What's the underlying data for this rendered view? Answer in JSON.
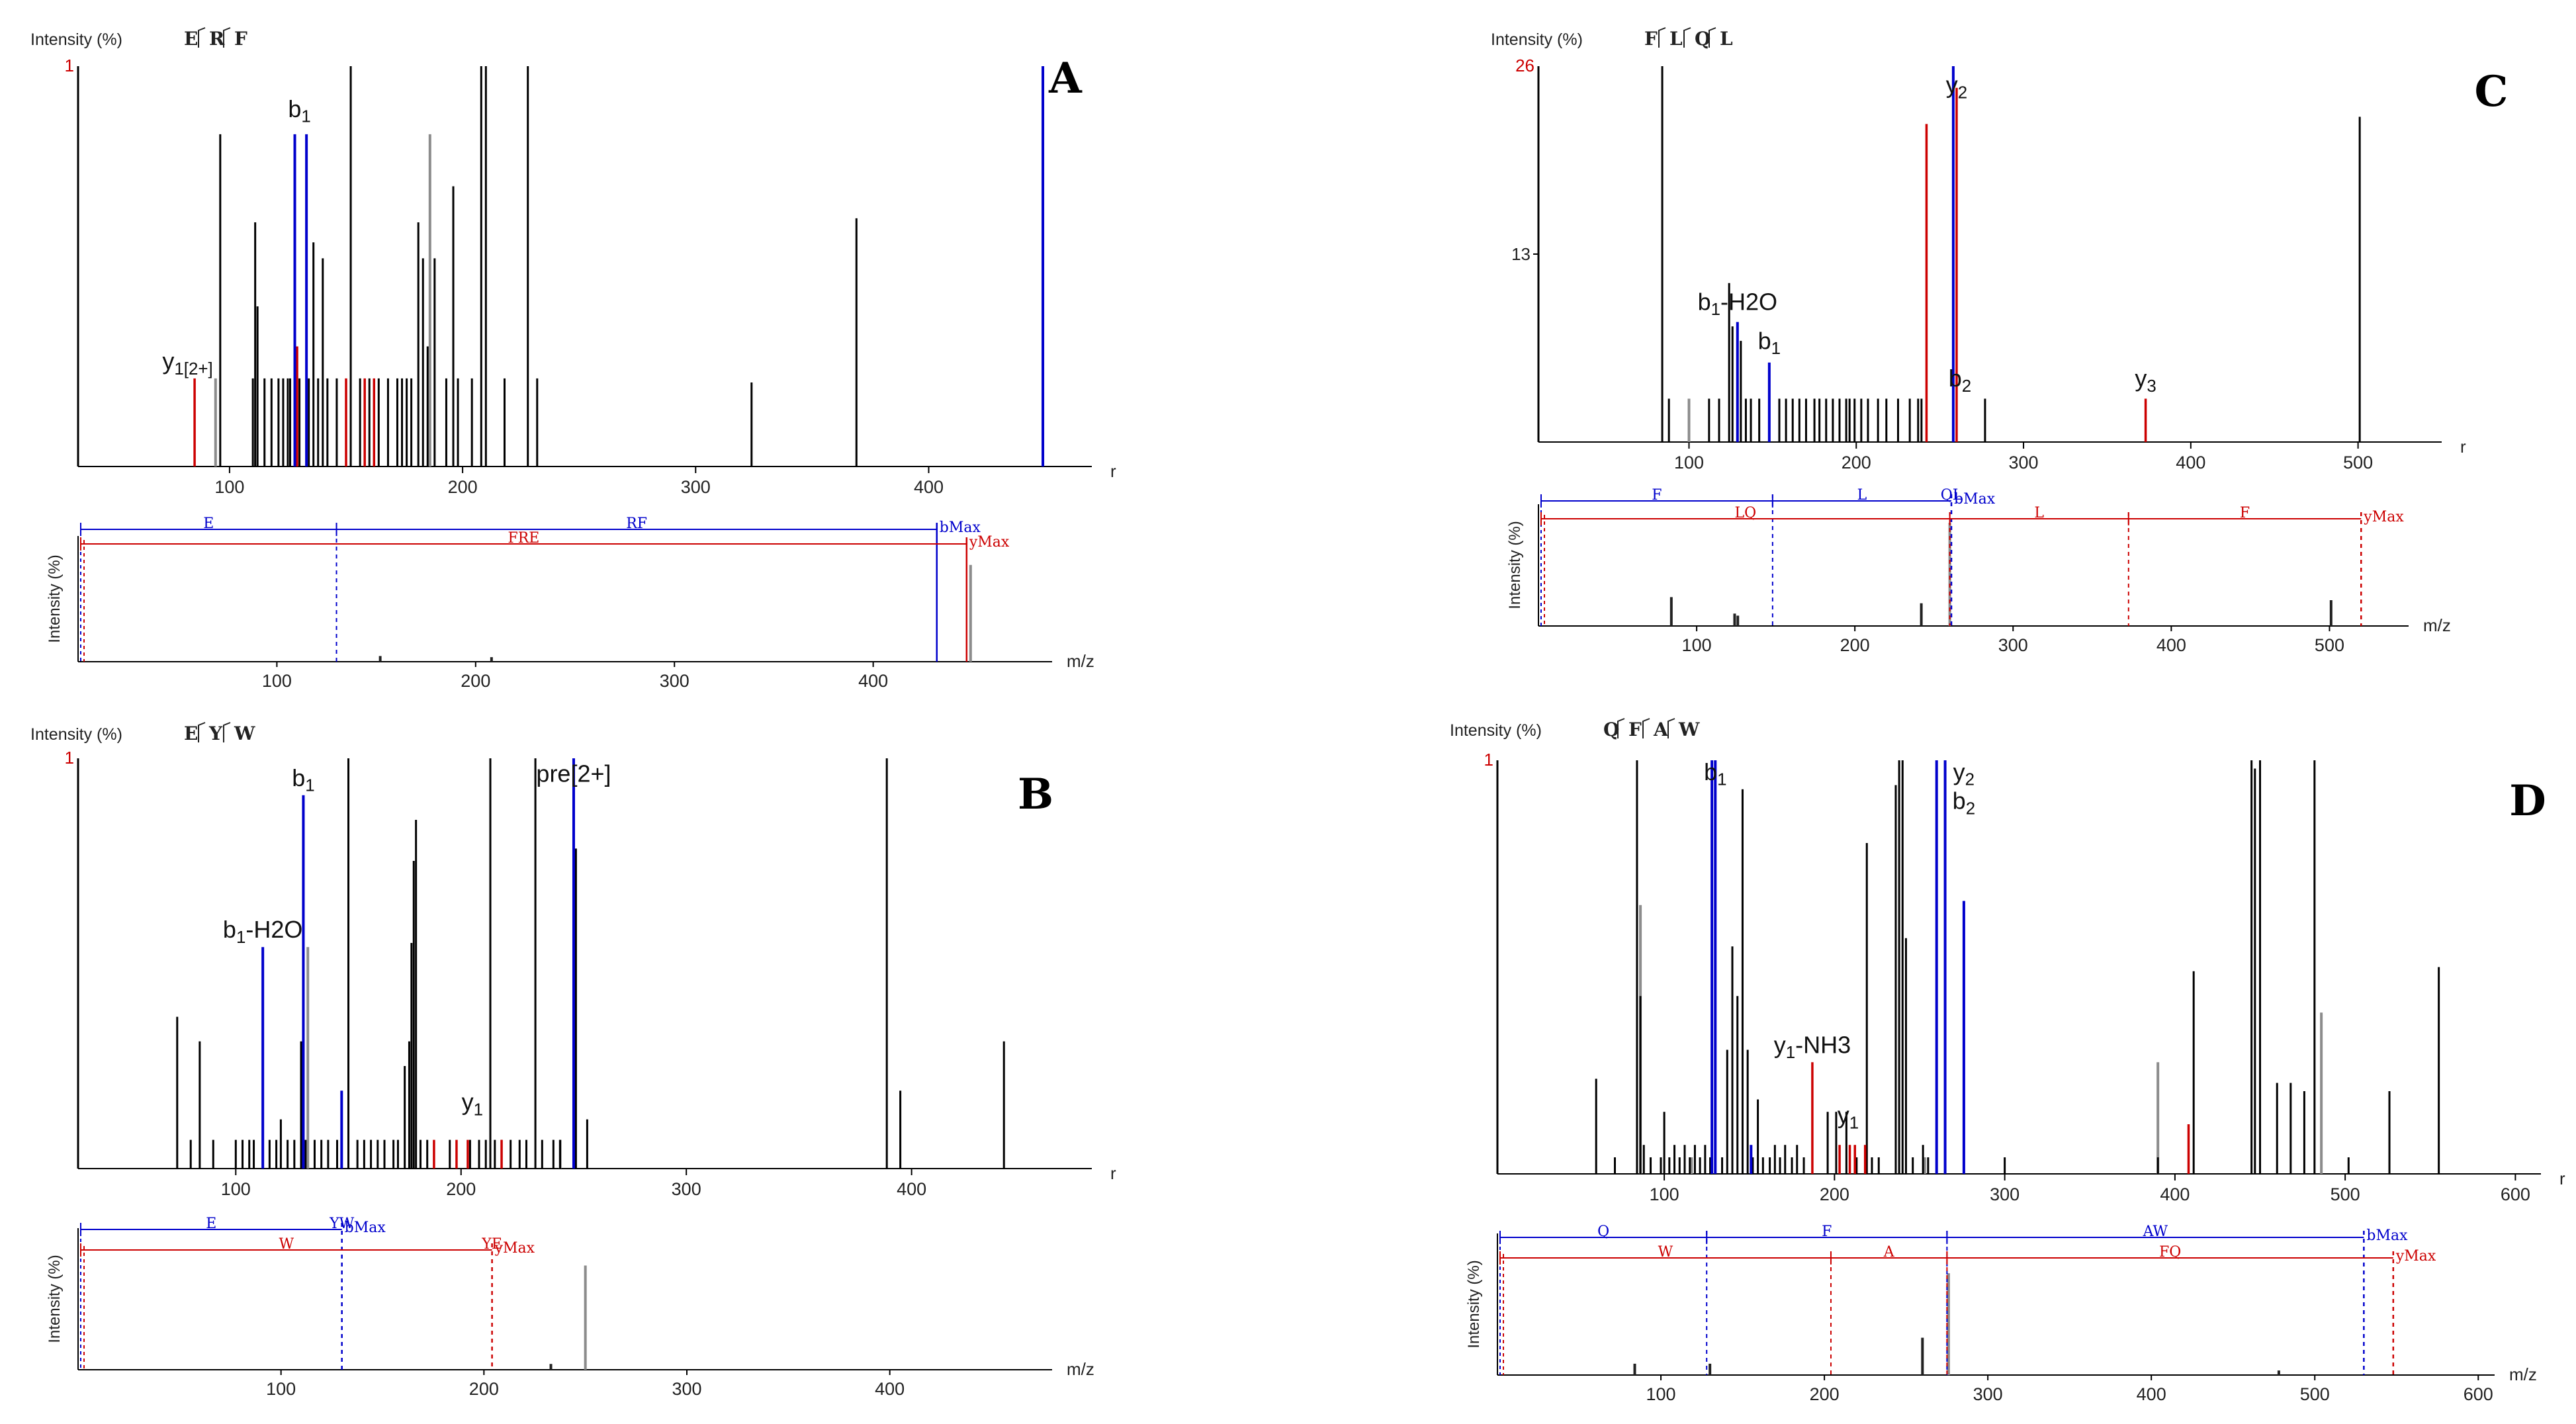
{
  "chart_data": [
    {
      "type": "bar",
      "panel_label": "A",
      "peptide": [
        "E",
        "R",
        "F"
      ],
      "y_label": "Intensity (%)",
      "y_top_label": "1",
      "y_ticks": [],
      "x_axis_label": "r",
      "x_ticks": [
        100,
        200,
        300,
        400
      ],
      "xlim": [
        35,
        470
      ],
      "ylim": [
        0,
        1
      ],
      "peaks_black": [
        [
          96,
          0.83
        ],
        [
          110,
          0.22
        ],
        [
          111,
          0.61
        ],
        [
          112,
          0.4
        ],
        [
          115,
          0.22
        ],
        [
          118,
          0.22
        ],
        [
          121,
          0.22
        ],
        [
          123,
          0.22
        ],
        [
          125,
          0.22
        ],
        [
          126,
          0.22
        ],
        [
          128,
          0.22
        ],
        [
          130,
          0.22
        ],
        [
          134,
          0.22
        ],
        [
          136,
          0.56
        ],
        [
          138,
          0.22
        ],
        [
          140,
          0.52
        ],
        [
          142,
          0.22
        ],
        [
          146,
          0.22
        ],
        [
          152,
          1.0
        ],
        [
          156,
          0.22
        ],
        [
          160,
          0.22
        ],
        [
          164,
          0.22
        ],
        [
          168,
          0.22
        ],
        [
          172,
          0.22
        ],
        [
          174,
          0.22
        ],
        [
          176,
          0.22
        ],
        [
          178,
          0.22
        ],
        [
          181,
          0.61
        ],
        [
          183,
          0.52
        ],
        [
          185,
          0.3
        ],
        [
          188,
          0.52
        ],
        [
          193,
          0.22
        ],
        [
          196,
          0.7
        ],
        [
          198,
          0.22
        ],
        [
          204,
          0.22
        ],
        [
          208,
          1.0
        ],
        [
          210,
          1.0
        ],
        [
          218,
          0.22
        ],
        [
          228,
          1.0
        ],
        [
          232,
          0.22
        ],
        [
          324,
          0.21
        ],
        [
          369,
          0.62
        ]
      ],
      "peaks_gray": [
        [
          94,
          0.22
        ],
        [
          186,
          0.83
        ]
      ],
      "peaks_red": [
        [
          85,
          0.22
        ],
        [
          129,
          0.3
        ],
        [
          150,
          0.22
        ],
        [
          158,
          0.22
        ],
        [
          162,
          0.22
        ]
      ],
      "peaks_blue": [
        [
          128,
          0.83
        ],
        [
          133,
          0.83
        ],
        [
          449,
          1.0
        ]
      ],
      "annotations": [
        {
          "text": "b1",
          "x": 130,
          "y": 0.85,
          "color": "black"
        },
        {
          "text": "y1[2+]",
          "x": 82,
          "y": 0.22,
          "color": "black"
        }
      ],
      "ladder": {
        "b_segments": [
          "E",
          "RF"
        ],
        "b_max": "bMax",
        "y_segments": [
          "FRE"
        ],
        "y_max": "yMax",
        "b_cuts": [
          130,
          432
        ],
        "y_cuts": [
          447
        ],
        "b_dashed": false,
        "y_dashed": false
      },
      "mini": {
        "x_label": "m/z",
        "x_ticks": [
          100,
          200,
          300,
          400
        ],
        "xlim": [
          0,
          490
        ],
        "y_label": "Intensity (%)",
        "peaks": [
          [
            152,
            0.05
          ],
          [
            208,
            0.04
          ],
          [
            449,
            0.85
          ]
        ]
      }
    },
    {
      "type": "bar",
      "panel_label": "B",
      "peptide": [
        "E",
        "Y",
        "W"
      ],
      "y_label": "Intensity (%)",
      "y_top_label": "1",
      "y_ticks": [],
      "x_axis_label": "r",
      "x_ticks": [
        100,
        200,
        300,
        400
      ],
      "xlim": [
        30,
        480
      ],
      "ylim": [
        0,
        1
      ],
      "peaks_black": [
        [
          74,
          0.37
        ],
        [
          80,
          0.07
        ],
        [
          84,
          0.31
        ],
        [
          90,
          0.07
        ],
        [
          100,
          0.07
        ],
        [
          103,
          0.07
        ],
        [
          106,
          0.07
        ],
        [
          108,
          0.07
        ],
        [
          115,
          0.07
        ],
        [
          118,
          0.07
        ],
        [
          120,
          0.12
        ],
        [
          123,
          0.07
        ],
        [
          126,
          0.07
        ],
        [
          129,
          0.31
        ],
        [
          131,
          0.07
        ],
        [
          135,
          0.07
        ],
        [
          138,
          0.07
        ],
        [
          141,
          0.07
        ],
        [
          145,
          0.07
        ],
        [
          150,
          1.0
        ],
        [
          154,
          0.07
        ],
        [
          157,
          0.07
        ],
        [
          160,
          0.07
        ],
        [
          163,
          0.07
        ],
        [
          166,
          0.07
        ],
        [
          170,
          0.07
        ],
        [
          172,
          0.07
        ],
        [
          175,
          0.25
        ],
        [
          177,
          0.31
        ],
        [
          178,
          0.55
        ],
        [
          179,
          0.75
        ],
        [
          180,
          0.85
        ],
        [
          182,
          0.07
        ],
        [
          185,
          0.07
        ],
        [
          195,
          0.07
        ],
        [
          204,
          0.07
        ],
        [
          208,
          0.07
        ],
        [
          211,
          0.07
        ],
        [
          213,
          1.0
        ],
        [
          215,
          0.07
        ],
        [
          218,
          0.07
        ],
        [
          222,
          0.07
        ],
        [
          226,
          0.07
        ],
        [
          229,
          0.07
        ],
        [
          233,
          1.0
        ],
        [
          236,
          0.07
        ],
        [
          241,
          0.07
        ],
        [
          244,
          0.07
        ],
        [
          251,
          0.78
        ],
        [
          256,
          0.12
        ],
        [
          389,
          1.0
        ],
        [
          395,
          0.19
        ],
        [
          441,
          0.31
        ]
      ],
      "peaks_gray": [
        [
          132,
          0.54
        ],
        [
          244,
          0.07
        ]
      ],
      "peaks_red": [
        [
          188,
          0.07
        ],
        [
          198,
          0.07
        ],
        [
          203,
          0.07
        ],
        [
          218,
          0.07
        ]
      ],
      "peaks_blue": [
        [
          112,
          0.54
        ],
        [
          130,
          0.91
        ],
        [
          147,
          0.19
        ],
        [
          250,
          1.0
        ]
      ],
      "annotations": [
        {
          "text": "b1",
          "x": 130,
          "y": 0.91,
          "color": "black"
        },
        {
          "text": "b1-H2O",
          "x": 112,
          "y": 0.54,
          "color": "black"
        },
        {
          "text": "pre[2+]",
          "x": 250,
          "y": 0.92,
          "color": "black"
        },
        {
          "text": "y1",
          "x": 205,
          "y": 0.12,
          "color": "black"
        }
      ],
      "ladder": {
        "b_segments": [
          "E",
          "YW"
        ],
        "b_max": "bMax",
        "y_segments": [
          "W",
          "YE"
        ],
        "y_max": "yMax",
        "b_cuts": [
          130
        ],
        "y_cuts": [
          204
        ],
        "b_dashed": true,
        "y_dashed": true
      },
      "mini": {
        "x_label": "m/z",
        "x_ticks": [
          100,
          200,
          300,
          400
        ],
        "xlim": [
          0,
          480
        ],
        "y_label": "Intensity (%)",
        "peaks": [
          [
            250,
            0.9
          ],
          [
            233,
            0.05
          ]
        ]
      }
    },
    {
      "type": "bar",
      "panel_label": "C",
      "peptide": [
        "F",
        "L",
        "Q",
        "L"
      ],
      "y_label": "Intensity (%)",
      "y_top_label": "26",
      "y_ticks": [
        13
      ],
      "x_axis_label": "r",
      "x_ticks": [
        100,
        200,
        300,
        400,
        500
      ],
      "xlim": [
        10,
        550
      ],
      "ylim": [
        0,
        26
      ],
      "peaks_black": [
        [
          84,
          26
        ],
        [
          88,
          3
        ],
        [
          112,
          3
        ],
        [
          118,
          3
        ],
        [
          124,
          11
        ],
        [
          126,
          8
        ],
        [
          131,
          7
        ],
        [
          134,
          3
        ],
        [
          137,
          3
        ],
        [
          142,
          3
        ],
        [
          148,
          3
        ],
        [
          154,
          3
        ],
        [
          158,
          3
        ],
        [
          162,
          3
        ],
        [
          166,
          3
        ],
        [
          170,
          3
        ],
        [
          175,
          3
        ],
        [
          178,
          3
        ],
        [
          182,
          3
        ],
        [
          186,
          3
        ],
        [
          190,
          3
        ],
        [
          194,
          3
        ],
        [
          196,
          3
        ],
        [
          199,
          3
        ],
        [
          203,
          3
        ],
        [
          207,
          3
        ],
        [
          213,
          3
        ],
        [
          218,
          3
        ],
        [
          225,
          3
        ],
        [
          232,
          3
        ],
        [
          237,
          3
        ],
        [
          239,
          3
        ],
        [
          277,
          3
        ],
        [
          501,
          22.5
        ]
      ],
      "peaks_gray": [
        [
          100,
          3
        ]
      ],
      "peaks_red": [
        [
          242,
          22
        ],
        [
          260,
          24.5
        ],
        [
          373,
          3
        ]
      ],
      "peaks_blue": [
        [
          129,
          8.3
        ],
        [
          148,
          5.5
        ],
        [
          258,
          26
        ]
      ],
      "annotations": [
        {
          "text": "y2",
          "x": 260,
          "y": 23.5,
          "color": "black"
        },
        {
          "text": "b1-H2O",
          "x": 129,
          "y": 8.5,
          "color": "black"
        },
        {
          "text": "b1",
          "x": 148,
          "y": 5.8,
          "color": "black"
        },
        {
          "text": "b2",
          "x": 262,
          "y": 3.2,
          "color": "black"
        },
        {
          "text": "y3",
          "x": 373,
          "y": 3.2,
          "color": "black"
        }
      ],
      "ladder": {
        "b_segments": [
          "F",
          "L",
          "QL"
        ],
        "b_max": "bMax",
        "y_segments": [
          "LQ",
          "L",
          "F"
        ],
        "y_max": "yMax",
        "b_cuts": [
          148,
          261
        ],
        "y_cuts": [
          260,
          373,
          520
        ],
        "b_dashed": true,
        "y_dashed": true
      },
      "mini": {
        "x_label": "m/z",
        "x_ticks": [
          100,
          200,
          300,
          400,
          500
        ],
        "xlim": [
          0,
          550
        ],
        "y_label": "Intensity (%)",
        "peaks": [
          [
            84,
            0.28
          ],
          [
            124,
            0.12
          ],
          [
            126,
            0.1
          ],
          [
            242,
            0.22
          ],
          [
            260,
            1.0
          ],
          [
            501,
            0.25
          ]
        ]
      }
    },
    {
      "type": "bar",
      "panel_label": "D",
      "peptide": [
        "Q",
        "F",
        "A",
        "W"
      ],
      "y_label": "Intensity (%)",
      "y_top_label": "1",
      "y_ticks": [],
      "x_axis_label": "r",
      "x_ticks": [
        100,
        200,
        300,
        400,
        500,
        600
      ],
      "xlim": [
        2,
        615
      ],
      "ylim": [
        0,
        1
      ],
      "peaks_black": [
        [
          60,
          0.23
        ],
        [
          71,
          0.04
        ],
        [
          84,
          1.0
        ],
        [
          86,
          0.43
        ],
        [
          88,
          0.07
        ],
        [
          92,
          0.04
        ],
        [
          98,
          0.04
        ],
        [
          100,
          0.15
        ],
        [
          103,
          0.04
        ],
        [
          106,
          0.07
        ],
        [
          109,
          0.04
        ],
        [
          112,
          0.07
        ],
        [
          115,
          0.04
        ],
        [
          118,
          0.07
        ],
        [
          121,
          0.04
        ],
        [
          124,
          0.07
        ],
        [
          127,
          0.04
        ],
        [
          134,
          0.04
        ],
        [
          137,
          0.3
        ],
        [
          140,
          0.55
        ],
        [
          143,
          0.43
        ],
        [
          146,
          0.93
        ],
        [
          149,
          0.3
        ],
        [
          152,
          0.04
        ],
        [
          155,
          0.18
        ],
        [
          158,
          0.04
        ],
        [
          162,
          0.04
        ],
        [
          165,
          0.07
        ],
        [
          168,
          0.04
        ],
        [
          171,
          0.07
        ],
        [
          175,
          0.04
        ],
        [
          178,
          0.07
        ],
        [
          182,
          0.04
        ],
        [
          196,
          0.15
        ],
        [
          201,
          0.15
        ],
        [
          207,
          0.15
        ],
        [
          213,
          0.04
        ],
        [
          219,
          0.8
        ],
        [
          222,
          0.04
        ],
        [
          226,
          0.04
        ],
        [
          236,
          0.94
        ],
        [
          238,
          1.0
        ],
        [
          240,
          1.0
        ],
        [
          242,
          0.57
        ],
        [
          246,
          0.04
        ],
        [
          252,
          0.07
        ],
        [
          255,
          0.04
        ],
        [
          300,
          0.04
        ],
        [
          390,
          0.04
        ],
        [
          411,
          0.49
        ],
        [
          445,
          1.0
        ],
        [
          447,
          0.98
        ],
        [
          450,
          1.0
        ],
        [
          460,
          0.22
        ],
        [
          468,
          0.22
        ],
        [
          476,
          0.2
        ],
        [
          482,
          1.0
        ],
        [
          502,
          0.04
        ],
        [
          526,
          0.2
        ],
        [
          555,
          0.5
        ]
      ],
      "peaks_gray": [
        [
          86,
          0.65
        ],
        [
          116,
          0.04
        ],
        [
          253,
          0.04
        ],
        [
          390,
          0.27
        ],
        [
          486,
          0.39
        ]
      ],
      "peaks_red": [
        [
          187,
          0.27
        ],
        [
          203,
          0.07
        ],
        [
          209,
          0.07
        ],
        [
          212,
          0.07
        ],
        [
          408,
          0.12
        ],
        [
          218,
          0.07
        ]
      ],
      "peaks_blue": [
        [
          128,
          1.0
        ],
        [
          130,
          1.0
        ],
        [
          260,
          1.0
        ],
        [
          265,
          1.0
        ],
        [
          276,
          0.66
        ],
        [
          151,
          0.07
        ]
      ],
      "annotations": [
        {
          "text": "b1",
          "x": 130,
          "y": 0.93,
          "color": "black"
        },
        {
          "text": "y2",
          "x": 276,
          "y": 0.93,
          "color": "black"
        },
        {
          "text": "b2",
          "x": 276,
          "y": 0.86,
          "color": "black"
        },
        {
          "text": "y1-NH3",
          "x": 187,
          "y": 0.27,
          "color": "black"
        },
        {
          "text": "y1",
          "x": 208,
          "y": 0.1,
          "color": "black"
        }
      ],
      "ladder": {
        "b_segments": [
          "Q",
          "F",
          "AW"
        ],
        "b_max": "bMax",
        "y_segments": [
          "W",
          "A",
          "FQ"
        ],
        "y_max": "yMax",
        "b_cuts": [
          128,
          275,
          530
        ],
        "y_cuts": [
          204,
          275,
          548
        ],
        "b_dashed": true,
        "y_dashed": true
      },
      "mini": {
        "x_label": "m/z",
        "x_ticks": [
          100,
          200,
          300,
          400,
          500,
          600
        ],
        "xlim": [
          0,
          610
        ],
        "y_label": "Intensity (%)",
        "peaks": [
          [
            84,
            0.1
          ],
          [
            130,
            0.1
          ],
          [
            260,
            0.33
          ],
          [
            276,
            0.9
          ],
          [
            478,
            0.04
          ]
        ]
      }
    }
  ]
}
